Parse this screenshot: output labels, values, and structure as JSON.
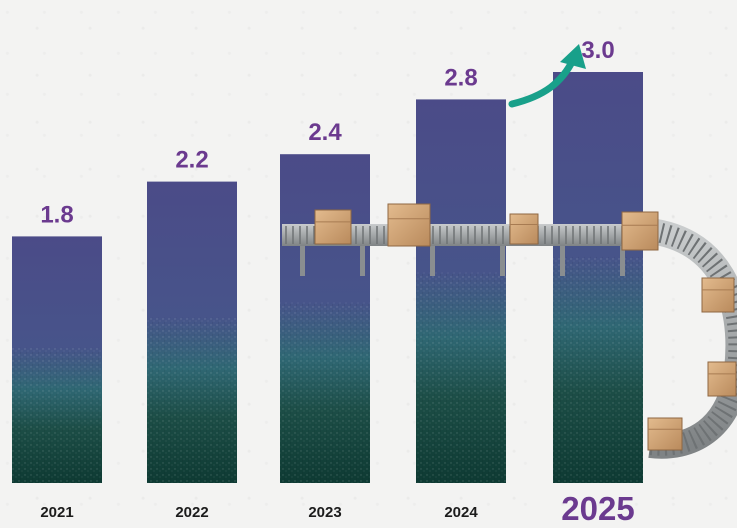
{
  "chart_data": {
    "type": "bar",
    "categories": [
      "2021",
      "2022",
      "2023",
      "2024",
      "2025"
    ],
    "values": [
      1.8,
      2.2,
      2.4,
      2.8,
      3.0
    ],
    "value_labels": [
      "1.8",
      "2.2",
      "2.4",
      "2.8",
      "3.0"
    ],
    "highlight_category": "2025",
    "colors": {
      "bar_top": "#4a4a86",
      "bar_bottom": "#0f3a34",
      "value_label": "#6b3a8f",
      "year_label": "#1c1c1c",
      "highlight_label": "#6b3a8f",
      "trend_arrow": "#18a08a",
      "conveyor": "#a9acae",
      "box": "#d7a97a"
    },
    "trend_arrow_icon": "upward-curved-arrow-icon",
    "decoration_icon": "conveyor-belt-with-boxes-icon",
    "grid": false,
    "legend": "none"
  }
}
